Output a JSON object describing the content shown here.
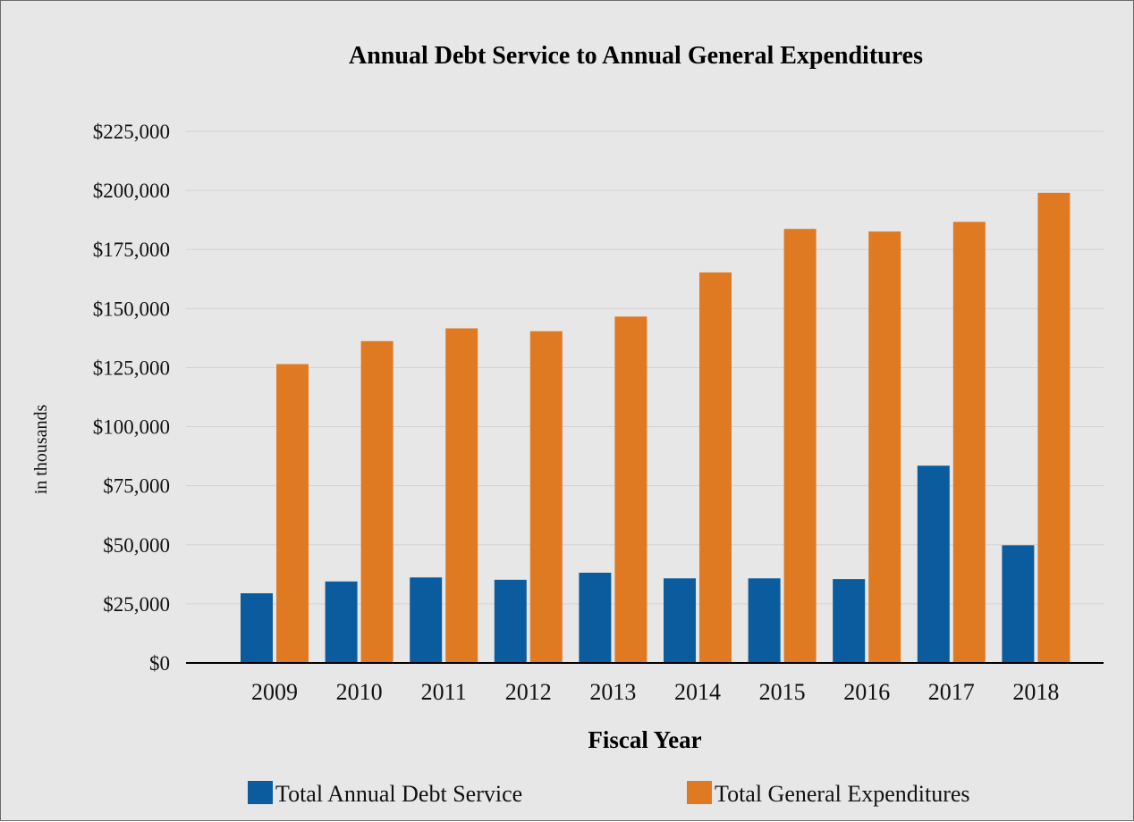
{
  "chart_data": {
    "type": "bar",
    "title": "Annual Debt Service to Annual General Expenditures",
    "xlabel": "Fiscal Year",
    "ylabel": "in thousands",
    "categories": [
      "2009",
      "2010",
      "2011",
      "2012",
      "2013",
      "2014",
      "2015",
      "2016",
      "2017",
      "2018"
    ],
    "series": [
      {
        "name": "Total Annual Debt Service",
        "color": "#0b5c9e",
        "values": [
          29500,
          34500,
          36200,
          35200,
          38200,
          35800,
          35800,
          35500,
          83500,
          49800
        ]
      },
      {
        "name": "Total General Expenditures",
        "color": "#e07a22",
        "values": [
          126500,
          136200,
          141600,
          140400,
          146600,
          165300,
          183700,
          182600,
          186700,
          199000
        ]
      }
    ],
    "ylim": [
      0,
      225000
    ],
    "yticks": [
      0,
      25000,
      50000,
      75000,
      100000,
      125000,
      150000,
      175000,
      200000,
      225000
    ],
    "ytick_labels": [
      "$0",
      "$25,000",
      "$50,000",
      "$75,000",
      "$100,000",
      "$125,000",
      "$150,000",
      "$175,000",
      "$200,000",
      "$225,000"
    ],
    "grid": true,
    "legend_position": "bottom"
  }
}
